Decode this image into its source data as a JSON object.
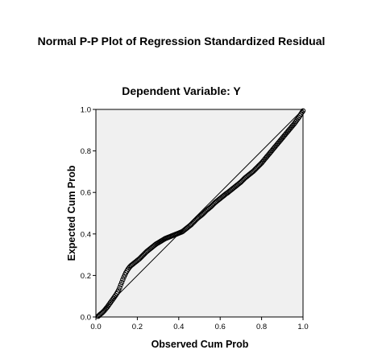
{
  "chart_data": {
    "type": "scatter",
    "title": "Normal P-P Plot of Regression Standardized Residual",
    "subtitle": "Dependent Variable: Y",
    "xlabel": "Observed Cum Prob",
    "ylabel": "Expected Cum Prob",
    "xlim": [
      0,
      1
    ],
    "ylim": [
      0,
      1
    ],
    "x_ticks": [
      0.0,
      0.2,
      0.4,
      0.6,
      0.8,
      1.0
    ],
    "y_ticks": [
      0.0,
      0.2,
      0.4,
      0.6,
      0.8,
      1.0
    ],
    "x_tick_labels": [
      "0.0",
      "0.2",
      "0.4",
      "0.6",
      "0.8",
      "1.0"
    ],
    "y_tick_labels": [
      "0.0",
      "0.2",
      "0.4",
      "0.6",
      "0.8",
      "1.0"
    ],
    "reference_line": [
      [
        0,
        0
      ],
      [
        1,
        1
      ]
    ],
    "grid": false,
    "colors": {
      "plot_background": "#f0f0f0",
      "marker_stroke": "#000000",
      "reference_line": "#000000",
      "frame": "#000000"
    },
    "points": [
      [
        0.01,
        0.003
      ],
      [
        0.015,
        0.007
      ],
      [
        0.02,
        0.012
      ],
      [
        0.025,
        0.016
      ],
      [
        0.03,
        0.02
      ],
      [
        0.035,
        0.025
      ],
      [
        0.04,
        0.03
      ],
      [
        0.045,
        0.036
      ],
      [
        0.05,
        0.042
      ],
      [
        0.055,
        0.048
      ],
      [
        0.06,
        0.055
      ],
      [
        0.065,
        0.062
      ],
      [
        0.07,
        0.069
      ],
      [
        0.075,
        0.076
      ],
      [
        0.08,
        0.083
      ],
      [
        0.085,
        0.09
      ],
      [
        0.09,
        0.097
      ],
      [
        0.095,
        0.104
      ],
      [
        0.1,
        0.112
      ],
      [
        0.105,
        0.12
      ],
      [
        0.11,
        0.13
      ],
      [
        0.115,
        0.142
      ],
      [
        0.12,
        0.155
      ],
      [
        0.125,
        0.167
      ],
      [
        0.13,
        0.18
      ],
      [
        0.135,
        0.192
      ],
      [
        0.14,
        0.203
      ],
      [
        0.145,
        0.213
      ],
      [
        0.15,
        0.222
      ],
      [
        0.155,
        0.23
      ],
      [
        0.16,
        0.237
      ],
      [
        0.165,
        0.243
      ],
      [
        0.17,
        0.248
      ],
      [
        0.175,
        0.252
      ],
      [
        0.18,
        0.256
      ],
      [
        0.185,
        0.26
      ],
      [
        0.19,
        0.264
      ],
      [
        0.195,
        0.268
      ],
      [
        0.2,
        0.272
      ],
      [
        0.205,
        0.276
      ],
      [
        0.21,
        0.28
      ],
      [
        0.215,
        0.285
      ],
      [
        0.22,
        0.29
      ],
      [
        0.225,
        0.295
      ],
      [
        0.23,
        0.3
      ],
      [
        0.235,
        0.305
      ],
      [
        0.24,
        0.31
      ],
      [
        0.245,
        0.315
      ],
      [
        0.25,
        0.319
      ],
      [
        0.255,
        0.323
      ],
      [
        0.26,
        0.327
      ],
      [
        0.265,
        0.331
      ],
      [
        0.27,
        0.335
      ],
      [
        0.275,
        0.339
      ],
      [
        0.28,
        0.343
      ],
      [
        0.285,
        0.347
      ],
      [
        0.29,
        0.351
      ],
      [
        0.295,
        0.354
      ],
      [
        0.3,
        0.357
      ],
      [
        0.305,
        0.36
      ],
      [
        0.31,
        0.363
      ],
      [
        0.315,
        0.366
      ],
      [
        0.32,
        0.369
      ],
      [
        0.325,
        0.372
      ],
      [
        0.33,
        0.375
      ],
      [
        0.335,
        0.378
      ],
      [
        0.34,
        0.38
      ],
      [
        0.345,
        0.382
      ],
      [
        0.35,
        0.384
      ],
      [
        0.355,
        0.386
      ],
      [
        0.36,
        0.388
      ],
      [
        0.365,
        0.39
      ],
      [
        0.37,
        0.392
      ],
      [
        0.375,
        0.394
      ],
      [
        0.38,
        0.396
      ],
      [
        0.385,
        0.398
      ],
      [
        0.39,
        0.4
      ],
      [
        0.395,
        0.402
      ],
      [
        0.4,
        0.404
      ],
      [
        0.405,
        0.406
      ],
      [
        0.41,
        0.408
      ],
      [
        0.415,
        0.41
      ],
      [
        0.42,
        0.413
      ],
      [
        0.425,
        0.417
      ],
      [
        0.43,
        0.421
      ],
      [
        0.435,
        0.425
      ],
      [
        0.44,
        0.429
      ],
      [
        0.445,
        0.433
      ],
      [
        0.45,
        0.437
      ],
      [
        0.455,
        0.441
      ],
      [
        0.46,
        0.445
      ],
      [
        0.465,
        0.45
      ],
      [
        0.47,
        0.455
      ],
      [
        0.475,
        0.46
      ],
      [
        0.48,
        0.465
      ],
      [
        0.485,
        0.47
      ],
      [
        0.49,
        0.475
      ],
      [
        0.495,
        0.479
      ],
      [
        0.5,
        0.483
      ],
      [
        0.505,
        0.487
      ],
      [
        0.51,
        0.491
      ],
      [
        0.515,
        0.495
      ],
      [
        0.52,
        0.5
      ],
      [
        0.525,
        0.505
      ],
      [
        0.53,
        0.51
      ],
      [
        0.535,
        0.515
      ],
      [
        0.54,
        0.519
      ],
      [
        0.545,
        0.523
      ],
      [
        0.55,
        0.527
      ],
      [
        0.555,
        0.531
      ],
      [
        0.56,
        0.536
      ],
      [
        0.565,
        0.541
      ],
      [
        0.57,
        0.546
      ],
      [
        0.575,
        0.551
      ],
      [
        0.58,
        0.555
      ],
      [
        0.585,
        0.559
      ],
      [
        0.59,
        0.563
      ],
      [
        0.595,
        0.567
      ],
      [
        0.6,
        0.571
      ],
      [
        0.605,
        0.575
      ],
      [
        0.61,
        0.579
      ],
      [
        0.615,
        0.583
      ],
      [
        0.62,
        0.587
      ],
      [
        0.625,
        0.591
      ],
      [
        0.63,
        0.595
      ],
      [
        0.635,
        0.598
      ],
      [
        0.64,
        0.602
      ],
      [
        0.645,
        0.606
      ],
      [
        0.65,
        0.61
      ],
      [
        0.655,
        0.614
      ],
      [
        0.66,
        0.618
      ],
      [
        0.665,
        0.622
      ],
      [
        0.67,
        0.626
      ],
      [
        0.675,
        0.63
      ],
      [
        0.68,
        0.634
      ],
      [
        0.685,
        0.638
      ],
      [
        0.69,
        0.642
      ],
      [
        0.695,
        0.646
      ],
      [
        0.7,
        0.65
      ],
      [
        0.705,
        0.655
      ],
      [
        0.71,
        0.66
      ],
      [
        0.715,
        0.665
      ],
      [
        0.72,
        0.67
      ],
      [
        0.725,
        0.674
      ],
      [
        0.73,
        0.678
      ],
      [
        0.735,
        0.682
      ],
      [
        0.74,
        0.686
      ],
      [
        0.745,
        0.69
      ],
      [
        0.75,
        0.694
      ],
      [
        0.755,
        0.698
      ],
      [
        0.76,
        0.702
      ],
      [
        0.765,
        0.707
      ],
      [
        0.77,
        0.712
      ],
      [
        0.775,
        0.717
      ],
      [
        0.78,
        0.722
      ],
      [
        0.785,
        0.727
      ],
      [
        0.79,
        0.732
      ],
      [
        0.795,
        0.737
      ],
      [
        0.8,
        0.742
      ],
      [
        0.805,
        0.748
      ],
      [
        0.81,
        0.754
      ],
      [
        0.815,
        0.76
      ],
      [
        0.82,
        0.766
      ],
      [
        0.825,
        0.772
      ],
      [
        0.83,
        0.778
      ],
      [
        0.835,
        0.784
      ],
      [
        0.84,
        0.79
      ],
      [
        0.845,
        0.796
      ],
      [
        0.85,
        0.802
      ],
      [
        0.855,
        0.808
      ],
      [
        0.86,
        0.814
      ],
      [
        0.865,
        0.82
      ],
      [
        0.87,
        0.826
      ],
      [
        0.875,
        0.832
      ],
      [
        0.88,
        0.838
      ],
      [
        0.885,
        0.844
      ],
      [
        0.89,
        0.85
      ],
      [
        0.895,
        0.856
      ],
      [
        0.9,
        0.862
      ],
      [
        0.905,
        0.868
      ],
      [
        0.91,
        0.874
      ],
      [
        0.915,
        0.88
      ],
      [
        0.92,
        0.886
      ],
      [
        0.925,
        0.892
      ],
      [
        0.93,
        0.898
      ],
      [
        0.935,
        0.904
      ],
      [
        0.94,
        0.91
      ],
      [
        0.945,
        0.916
      ],
      [
        0.95,
        0.922
      ],
      [
        0.955,
        0.928
      ],
      [
        0.96,
        0.934
      ],
      [
        0.965,
        0.941
      ],
      [
        0.97,
        0.948
      ],
      [
        0.975,
        0.955
      ],
      [
        0.98,
        0.962
      ],
      [
        0.985,
        0.97
      ],
      [
        0.99,
        0.978
      ],
      [
        0.995,
        0.986
      ],
      [
        1.0,
        0.993
      ]
    ]
  }
}
